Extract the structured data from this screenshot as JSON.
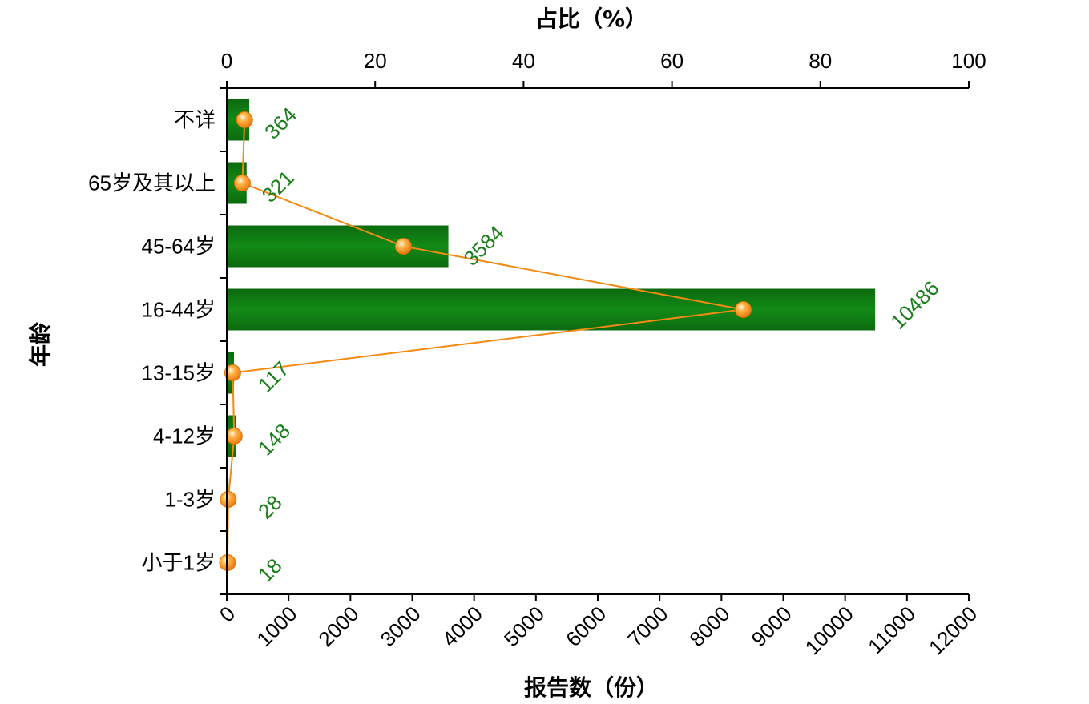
{
  "chart_data": {
    "type": "bar",
    "orientation": "horizontal",
    "categories": [
      "不详",
      "65岁及其以上",
      "45-64岁",
      "16-44岁",
      "13-15岁",
      "4-12岁",
      "1-3岁",
      "小于1岁"
    ],
    "series": [
      {
        "name": "报告数",
        "type": "bar",
        "axis": "bottom",
        "values": [
          364,
          321,
          3584,
          10486,
          117,
          148,
          28,
          18
        ],
        "data_labels": [
          "364",
          "321",
          "3584",
          "10486",
          "117",
          "148",
          "28",
          "18"
        ]
      },
      {
        "name": "占比",
        "type": "line",
        "axis": "top",
        "values": [
          2.4,
          2.1,
          23.8,
          69.6,
          0.8,
          1.0,
          0.2,
          0.1
        ]
      }
    ],
    "x_bottom": {
      "label": "报告数（份）",
      "range": [
        0,
        12000
      ],
      "ticks": [
        "0",
        "1000",
        "2000",
        "3000",
        "4000",
        "5000",
        "6000",
        "7000",
        "8000",
        "9000",
        "10000",
        "11000",
        "12000"
      ]
    },
    "x_top": {
      "label": "占比（%）",
      "range": [
        0,
        100
      ],
      "ticks": [
        "0",
        "20",
        "40",
        "60",
        "80",
        "100"
      ]
    },
    "y_axis": {
      "label": "年龄"
    },
    "colors": {
      "bar": "#0f7a12",
      "bar_dark": "#0a5c0d",
      "line": "#f28a13",
      "marker": "#f7931e",
      "label": "#1a7f1a"
    },
    "grid": false,
    "legend": "none"
  }
}
